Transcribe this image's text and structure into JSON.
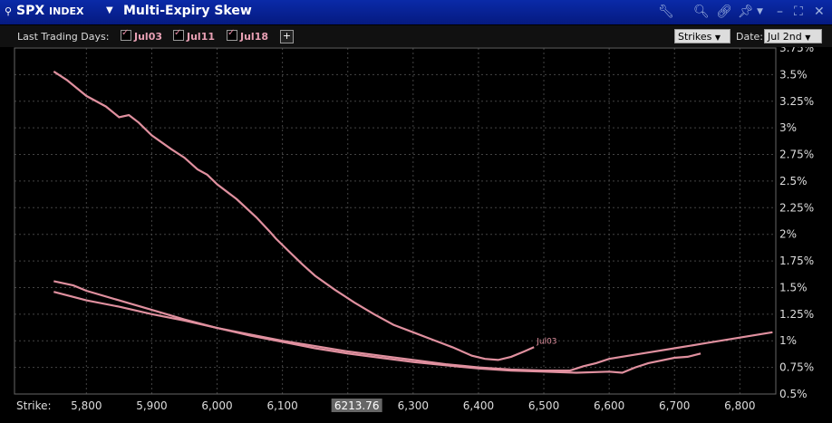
{
  "titlebar": {
    "symbol": "SPX",
    "symbol_suffix": "INDEX",
    "title": "Multi-Expiry Skew"
  },
  "toolbar": {
    "last_trading_days_label": "Last Trading Days:",
    "expiries": [
      {
        "label": "Jul03",
        "checked": true
      },
      {
        "label": "Jul11",
        "checked": true
      },
      {
        "label": "Jul18",
        "checked": true
      }
    ],
    "add_label": "+",
    "strikes_dropdown": "Strikes",
    "date_label": "Date:",
    "date_value": "Jul 2nd"
  },
  "chart_data": {
    "type": "line",
    "xlabel": "Strike:",
    "current_price_label": "6213.76",
    "current_price": 6213.76,
    "x_ticks": [
      5800,
      5900,
      6000,
      6100,
      6200,
      6300,
      6400,
      6500,
      6600,
      6700,
      6800
    ],
    "x_tick_labels": [
      "5,800",
      "5,900",
      "6,000",
      "6,100",
      "6,200",
      "6,300",
      "6,400",
      "6,500",
      "6,600",
      "6,700",
      "6,800"
    ],
    "xlim": [
      5690,
      6855
    ],
    "ylim": [
      0.5,
      3.75
    ],
    "y_ticks": [
      0.5,
      0.75,
      1,
      1.25,
      1.5,
      1.75,
      2,
      2.25,
      2.5,
      2.75,
      3,
      3.25,
      3.5,
      3.75
    ],
    "y_tick_labels": [
      "0.5%",
      "0.75%",
      "1%",
      "1.25%",
      "1.5%",
      "1.75%",
      "2%",
      "2.25%",
      "2.5%",
      "2.75%",
      "3%",
      "3.25%",
      "3.5%",
      "3.75%"
    ],
    "grid": true,
    "line_color": "#e0909f",
    "series": [
      {
        "name": "Jul03",
        "label_on_chart": "Jul03",
        "points": [
          [
            5750,
            3.53
          ],
          [
            5770,
            3.45
          ],
          [
            5800,
            3.3
          ],
          [
            5830,
            3.2
          ],
          [
            5850,
            3.1
          ],
          [
            5865,
            3.12
          ],
          [
            5880,
            3.05
          ],
          [
            5900,
            2.93
          ],
          [
            5930,
            2.8
          ],
          [
            5950,
            2.72
          ],
          [
            5970,
            2.61
          ],
          [
            5985,
            2.56
          ],
          [
            6000,
            2.47
          ],
          [
            6030,
            2.33
          ],
          [
            6060,
            2.16
          ],
          [
            6080,
            2.03
          ],
          [
            6090,
            1.96
          ],
          [
            6110,
            1.84
          ],
          [
            6130,
            1.72
          ],
          [
            6150,
            1.61
          ],
          [
            6180,
            1.48
          ],
          [
            6210,
            1.36
          ],
          [
            6240,
            1.25
          ],
          [
            6270,
            1.15
          ],
          [
            6300,
            1.08
          ],
          [
            6330,
            1.01
          ],
          [
            6360,
            0.94
          ],
          [
            6390,
            0.86
          ],
          [
            6410,
            0.83
          ],
          [
            6430,
            0.82
          ],
          [
            6450,
            0.85
          ],
          [
            6470,
            0.9
          ],
          [
            6485,
            0.94
          ]
        ]
      },
      {
        "name": "Jul11",
        "points": [
          [
            5750,
            1.56
          ],
          [
            5780,
            1.52
          ],
          [
            5800,
            1.47
          ],
          [
            5850,
            1.38
          ],
          [
            5900,
            1.29
          ],
          [
            5950,
            1.2
          ],
          [
            6000,
            1.12
          ],
          [
            6050,
            1.05
          ],
          [
            6100,
            0.99
          ],
          [
            6150,
            0.93
          ],
          [
            6200,
            0.88
          ],
          [
            6250,
            0.84
          ],
          [
            6300,
            0.8
          ],
          [
            6350,
            0.77
          ],
          [
            6400,
            0.74
          ],
          [
            6450,
            0.72
          ],
          [
            6500,
            0.71
          ],
          [
            6550,
            0.7
          ],
          [
            6600,
            0.71
          ],
          [
            6620,
            0.7
          ],
          [
            6640,
            0.75
          ],
          [
            6660,
            0.79
          ],
          [
            6700,
            0.84
          ],
          [
            6720,
            0.85
          ],
          [
            6740,
            0.88
          ]
        ]
      },
      {
        "name": "Jul18",
        "points": [
          [
            5750,
            1.46
          ],
          [
            5800,
            1.38
          ],
          [
            5850,
            1.32
          ],
          [
            5900,
            1.25
          ],
          [
            5950,
            1.19
          ],
          [
            6000,
            1.12
          ],
          [
            6050,
            1.06
          ],
          [
            6100,
            1.0
          ],
          [
            6150,
            0.95
          ],
          [
            6200,
            0.9
          ],
          [
            6250,
            0.86
          ],
          [
            6300,
            0.82
          ],
          [
            6350,
            0.78
          ],
          [
            6400,
            0.75
          ],
          [
            6450,
            0.73
          ],
          [
            6500,
            0.72
          ],
          [
            6540,
            0.72
          ],
          [
            6550,
            0.74
          ],
          [
            6560,
            0.76
          ],
          [
            6580,
            0.79
          ],
          [
            6600,
            0.83
          ],
          [
            6650,
            0.88
          ],
          [
            6700,
            0.93
          ],
          [
            6750,
            0.98
          ],
          [
            6800,
            1.03
          ],
          [
            6850,
            1.08
          ]
        ]
      }
    ]
  }
}
